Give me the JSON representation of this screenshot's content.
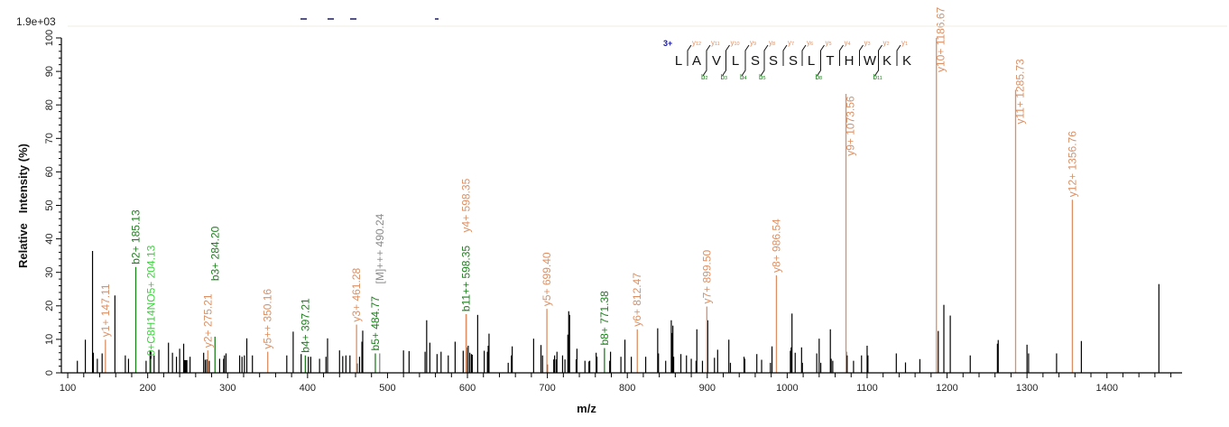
{
  "chart_data": {
    "type": "bar",
    "title": "",
    "max_intensity_label": "1.9e+03",
    "xlabel": "m/z",
    "ylabel": "Relative   Intensity (%)",
    "xlim": [
      92,
      1494
    ],
    "ylim": [
      0,
      100
    ],
    "x_ticks": [
      100,
      200,
      300,
      400,
      500,
      600,
      700,
      800,
      900,
      1000,
      1100,
      1200,
      1300,
      1400
    ],
    "y_ticks": [
      0,
      10,
      20,
      30,
      40,
      50,
      60,
      70,
      80,
      90,
      100
    ],
    "grid": false,
    "colors": {
      "unassigned": "#000000",
      "y_ion": "#dc8f63",
      "b_ion": "#1d7f1d",
      "neutral_loss": "#3ad13a",
      "precursor": "#8a8a8a",
      "charge": "#1a1aa0"
    },
    "peptide": {
      "charge": "3+",
      "sequence": [
        "L",
        "A",
        "V",
        "L",
        "S",
        "S",
        "S",
        "L",
        "T",
        "H",
        "W",
        "K",
        "K"
      ],
      "y_marks": [
        "y12",
        "y11",
        "y10",
        "y9",
        "y8",
        "y7",
        "y6",
        "y5",
        "y4",
        "y3",
        "y2",
        "y1"
      ],
      "b_marks": {
        "2": "b2",
        "3": "b3",
        "4": "b4",
        "5": "b5",
        "8": "b8",
        "11": "b11"
      }
    },
    "annotated_peaks": [
      {
        "mz": 147.11,
        "intensity": 9.9,
        "label": "y1+ 147.11",
        "ion": "y_ion"
      },
      {
        "mz": 185.13,
        "intensity": 31.6,
        "label": "b2+ 185.13",
        "ion": "b_ion"
      },
      {
        "mz": 204.13,
        "intensity": 4.2,
        "label": "0+C8H14NO5+ 204.13",
        "ion": "neutral_loss"
      },
      {
        "mz": 275.21,
        "intensity": 6.7,
        "label": "y2+ 275.21",
        "ion": "y_ion"
      },
      {
        "mz": 284.2,
        "intensity": 10.8,
        "label": "b3+ 284.20",
        "ion": "b_ion"
      },
      {
        "mz": 350.16,
        "intensity": 6.3,
        "label": "y5++ 350.16",
        "ion": "y_ion"
      },
      {
        "mz": 397.21,
        "intensity": 5.2,
        "label": "b4+ 397.21",
        "ion": "b_ion"
      },
      {
        "mz": 461.28,
        "intensity": 14.4,
        "label": "y3+ 461.28",
        "ion": "y_ion"
      },
      {
        "mz": 484.77,
        "intensity": 5.8,
        "label": "b5+ 484.77",
        "ion": "b_ion"
      },
      {
        "mz": 490.24,
        "intensity": 5.8,
        "label": "[M]+++ 490.24",
        "ion": "precursor"
      },
      {
        "mz": 598.35,
        "intensity": 17.5,
        "label": "b11++ 598.35",
        "ion": "b_ion"
      },
      {
        "mz": 598.35,
        "intensity": 17.5,
        "label": "y4+ 598.35",
        "ion": "y_ion"
      },
      {
        "mz": 699.4,
        "intensity": 19.1,
        "label": "y5+ 699.40",
        "ion": "y_ion"
      },
      {
        "mz": 771.38,
        "intensity": 7.4,
        "label": "b8+ 771.38",
        "ion": "b_ion"
      },
      {
        "mz": 812.47,
        "intensity": 13.0,
        "label": "y6+ 812.47",
        "ion": "y_ion"
      },
      {
        "mz": 899.5,
        "intensity": 19.8,
        "label": "y7+ 899.50",
        "ion": "y_ion"
      },
      {
        "mz": 986.54,
        "intensity": 29.1,
        "label": "y8+ 986.54",
        "ion": "y_ion"
      },
      {
        "mz": 1073.56,
        "intensity": 83.3,
        "label": "y9+ 1073.56",
        "ion": "y_ion"
      },
      {
        "mz": 1186.67,
        "intensity": 100,
        "label": "y10+ 1186.67",
        "ion": "y_ion"
      },
      {
        "mz": 1285.73,
        "intensity": 84.5,
        "label": "y11+ 1285.73",
        "ion": "y_ion"
      },
      {
        "mz": 1356.76,
        "intensity": 51.7,
        "label": "y12+ 1356.76",
        "ion": "y_ion"
      }
    ],
    "peaks": [
      [
        112,
        3.6
      ],
      [
        122,
        9.9
      ],
      [
        131,
        36.4
      ],
      [
        132,
        6
      ],
      [
        137,
        4.2
      ],
      [
        143,
        5.8
      ],
      [
        159,
        23.1
      ],
      [
        172,
        5.2
      ],
      [
        176,
        4.2
      ],
      [
        198,
        3.6
      ],
      [
        203,
        6.7
      ],
      [
        204,
        6.3
      ],
      [
        208,
        5.2
      ],
      [
        214,
        6.9
      ],
      [
        226,
        9
      ],
      [
        231,
        6
      ],
      [
        236,
        4.8
      ],
      [
        240,
        7.2
      ],
      [
        245,
        8.7
      ],
      [
        246,
        3.8
      ],
      [
        247,
        3.8
      ],
      [
        248,
        3.8
      ],
      [
        249,
        3.8
      ],
      [
        253,
        4.8
      ],
      [
        270,
        6
      ],
      [
        272,
        3.9
      ],
      [
        274,
        4
      ],
      [
        277,
        3.6
      ],
      [
        290,
        4.2
      ],
      [
        295,
        4.2
      ],
      [
        296,
        5.2
      ],
      [
        298,
        5.8
      ],
      [
        315,
        5.2
      ],
      [
        318,
        4.8
      ],
      [
        321,
        5.2
      ],
      [
        324,
        10.3
      ],
      [
        331,
        5.2
      ],
      [
        374,
        5.2
      ],
      [
        382,
        12.3
      ],
      [
        392,
        5.6
      ],
      [
        401,
        4.8
      ],
      [
        404,
        4.8
      ],
      [
        415,
        4.2
      ],
      [
        423,
        4.8
      ],
      [
        425,
        10.3
      ],
      [
        440,
        6.7
      ],
      [
        444,
        5
      ],
      [
        448,
        5.2
      ],
      [
        453,
        5.2
      ],
      [
        462,
        2.8
      ],
      [
        465,
        4.8
      ],
      [
        468,
        9.3
      ],
      [
        469,
        12.6
      ],
      [
        520,
        6.7
      ],
      [
        527,
        6.5
      ],
      [
        547,
        6.3
      ],
      [
        549,
        15.7
      ],
      [
        553,
        9
      ],
      [
        562,
        5.6
      ],
      [
        567,
        6.3
      ],
      [
        576,
        5.2
      ],
      [
        584.6,
        9.3
      ],
      [
        594.7,
        6.6
      ],
      [
        599,
        7.6
      ],
      [
        601,
        8.1
      ],
      [
        603,
        6
      ],
      [
        605,
        5.6
      ],
      [
        606,
        5.4
      ],
      [
        612.8,
        17.3
      ],
      [
        621,
        6.6
      ],
      [
        625,
        6.3
      ],
      [
        626,
        8.1
      ],
      [
        627,
        11.7
      ],
      [
        651,
        3
      ],
      [
        655,
        5.2
      ],
      [
        656,
        7.9
      ],
      [
        682.8,
        10.2
      ],
      [
        692,
        8.3
      ],
      [
        694,
        5.2
      ],
      [
        700,
        2.5
      ],
      [
        708,
        4
      ],
      [
        709,
        5.2
      ],
      [
        711,
        4
      ],
      [
        712,
        6.3
      ],
      [
        719,
        5.2
      ],
      [
        722,
        4
      ],
      [
        725.6,
        11.4
      ],
      [
        726.7,
        18.4
      ],
      [
        727.8,
        17.3
      ],
      [
        736,
        4
      ],
      [
        737,
        7.2
      ],
      [
        747,
        3.6
      ],
      [
        752,
        3.4
      ],
      [
        753,
        3.6
      ],
      [
        761,
        6
      ],
      [
        762,
        4.8
      ],
      [
        778,
        3.6
      ],
      [
        779,
        6.3
      ],
      [
        792,
        4.8
      ],
      [
        797,
        9.9
      ],
      [
        805,
        4.8
      ],
      [
        823,
        4.8
      ],
      [
        838,
        13.3
      ],
      [
        839,
        5.8
      ],
      [
        848,
        3.6
      ],
      [
        855,
        15.7
      ],
      [
        856,
        11.9
      ],
      [
        857,
        14.1
      ],
      [
        858,
        4.8
      ],
      [
        867,
        5.6
      ],
      [
        874,
        5.2
      ],
      [
        880,
        4.2
      ],
      [
        886,
        3.6
      ],
      [
        887,
        13
      ],
      [
        894,
        3.6
      ],
      [
        900.6,
        15.7
      ],
      [
        909,
        4.5
      ],
      [
        913,
        6.9
      ],
      [
        927,
        9.9
      ],
      [
        929,
        3
      ],
      [
        946,
        4.8
      ],
      [
        947,
        4.2
      ],
      [
        962,
        5.6
      ],
      [
        968,
        3.9
      ],
      [
        979,
        3
      ],
      [
        981,
        7.9
      ],
      [
        1004,
        6.6
      ],
      [
        1005,
        7.6
      ],
      [
        1006,
        17.7
      ],
      [
        1010,
        6
      ],
      [
        1018,
        7.6
      ],
      [
        1019,
        3
      ],
      [
        1037,
        5.8
      ],
      [
        1040,
        10.2
      ],
      [
        1042,
        3
      ],
      [
        1054,
        13
      ],
      [
        1055,
        4.2
      ],
      [
        1057,
        3.6
      ],
      [
        1074,
        6.3
      ],
      [
        1075,
        5.2
      ],
      [
        1083,
        3.6
      ],
      [
        1093,
        5.2
      ],
      [
        1100,
        8.1
      ],
      [
        1101,
        5.2
      ],
      [
        1136.5,
        5.8
      ],
      [
        1148,
        3.1
      ],
      [
        1166,
        4.1
      ],
      [
        1189,
        12.5
      ],
      [
        1196,
        20.3
      ],
      [
        1204,
        17.1
      ],
      [
        1229,
        5.2
      ],
      [
        1263,
        8.7
      ],
      [
        1264,
        9.8
      ],
      [
        1300,
        8.4
      ],
      [
        1302,
        5.8
      ],
      [
        1337,
        5.8
      ],
      [
        1368,
        9.5
      ],
      [
        1465,
        26.5
      ]
    ]
  }
}
